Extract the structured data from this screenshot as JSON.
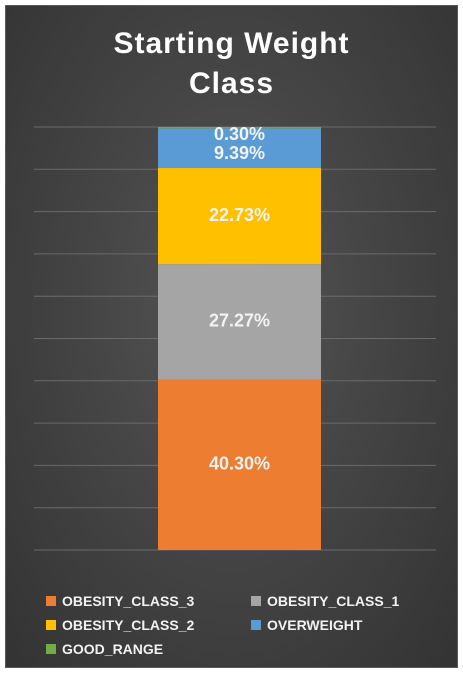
{
  "chart_data": {
    "type": "bar",
    "stacked": true,
    "title": "Starting Weight Class",
    "title_lines": [
      "Starting Weight",
      "Class"
    ],
    "ylim": [
      0,
      100
    ],
    "grid": true,
    "legend_position": "bottom",
    "series": [
      {
        "name": "OBESITY_CLASS_3",
        "value": 40.3,
        "label": "40.30%",
        "color": "#ed7d31"
      },
      {
        "name": "OBESITY_CLASS_1",
        "value": 27.27,
        "label": "27.27%",
        "color": "#a5a5a5"
      },
      {
        "name": "OBESITY_CLASS_2",
        "value": 22.73,
        "label": "22.73%",
        "color": "#ffc000"
      },
      {
        "name": "OVERWEIGHT",
        "value": 9.39,
        "label": "9.39%",
        "color": "#5b9bd5"
      },
      {
        "name": "GOOD_RANGE",
        "value": 0.3,
        "label": "0.30%",
        "color": "#70ad47"
      }
    ]
  },
  "legend": [
    {
      "label": "OBESITY_CLASS_3",
      "color": "#ed7d31"
    },
    {
      "label": "OBESITY_CLASS_1",
      "color": "#a5a5a5"
    },
    {
      "label": "OBESITY_CLASS_2",
      "color": "#ffc000"
    },
    {
      "label": "OVERWEIGHT",
      "color": "#5b9bd5"
    },
    {
      "label": "GOOD_RANGE",
      "color": "#70ad47"
    }
  ]
}
